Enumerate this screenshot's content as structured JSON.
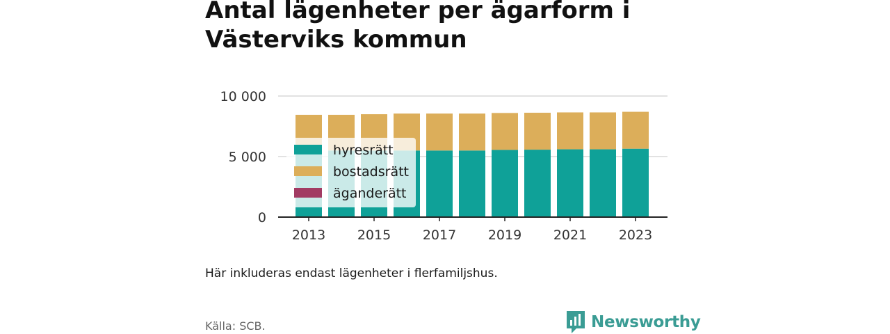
{
  "title": "Antal lägenheter per ägarform i Västerviks kommun",
  "note": "Här inkluderas endast lägenheter i flerfamiljshus.",
  "source": "Källa: SCB.",
  "brand": "Newsworthy",
  "colors": {
    "hyresratt": "#0fa198",
    "bostadsratt": "#dcae5a",
    "aganderatt": "#a23b63",
    "grid": "#d9d9d9",
    "axis": "#222222",
    "brand": "#3a9c94"
  },
  "chart_data": {
    "type": "bar",
    "stacked": true,
    "categories": [
      "2013",
      "2014",
      "2015",
      "2016",
      "2017",
      "2018",
      "2019",
      "2020",
      "2021",
      "2022",
      "2023"
    ],
    "tick_labels": [
      "2013",
      "2015",
      "2017",
      "2019",
      "2021",
      "2023"
    ],
    "y_tick_labels": [
      "0",
      "5 000",
      "10 000"
    ],
    "y_ticks": [
      0,
      5000,
      10000
    ],
    "ylim": [
      0,
      10000
    ],
    "legend_position": "inside-left",
    "series": [
      {
        "name": "hyresrätt",
        "color_key": "hyresratt",
        "values": [
          5500,
          5500,
          5500,
          5500,
          5500,
          5500,
          5550,
          5570,
          5600,
          5600,
          5650
        ]
      },
      {
        "name": "bostadsrätt",
        "color_key": "bostadsratt",
        "values": [
          2950,
          2950,
          3000,
          3050,
          3050,
          3050,
          3050,
          3050,
          3050,
          3050,
          3050
        ]
      },
      {
        "name": "äganderätt",
        "color_key": "aganderatt",
        "values": [
          0,
          0,
          0,
          0,
          0,
          0,
          0,
          0,
          0,
          0,
          0
        ]
      }
    ]
  }
}
